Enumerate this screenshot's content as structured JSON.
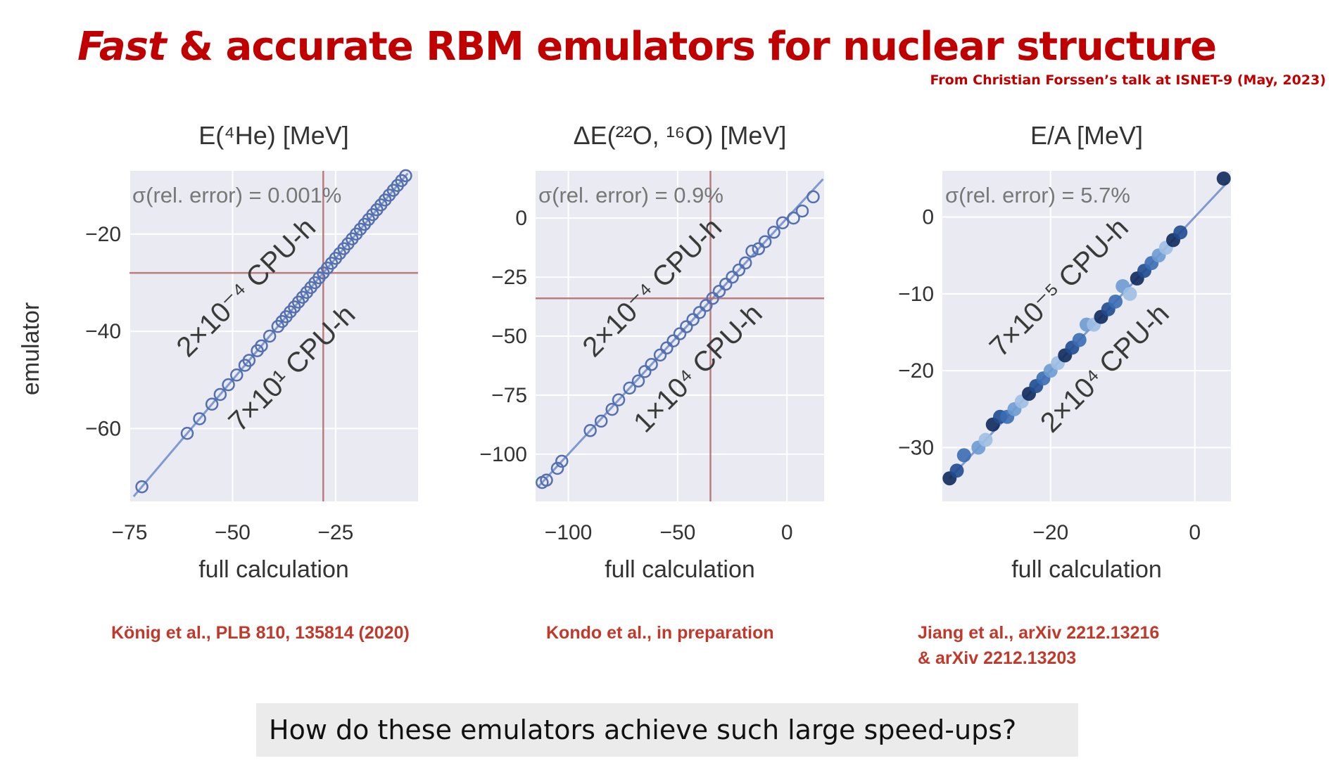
{
  "slide": {
    "title_italic": "Fast",
    "title_rest": " & accurate RBM emulators for nuclear structure",
    "source_note": "From Christian Forssen’s talk at ISNET-9 (May, 2023)",
    "question": "How do these emulators achieve such large speed-ups?",
    "colors": {
      "title": "#c00000",
      "citation": "#c0392b",
      "panel_bg": "#eaeaf2",
      "marker": "#5470b0",
      "crosshair": "#b26b6b"
    }
  },
  "chart_data": [
    {
      "type": "scatter",
      "title": "E(⁴He) [MeV]",
      "xlabel": "full calculation",
      "ylabel": "emulator",
      "xlim": [
        -75,
        -5
      ],
      "ylim": [
        -75,
        -7
      ],
      "xticks": [
        -75,
        -50,
        -25
      ],
      "yticks": [
        -20,
        -40,
        -60
      ],
      "xticklabels": [
        "−75",
        "−50",
        "−25"
      ],
      "yticklabels": [
        "−20",
        "−40",
        "−60"
      ],
      "grid": true,
      "annotation": "σ(rel. error) = 0.001%",
      "emulator_cost": "2×10⁻⁴ CPU-h",
      "full_cost": "7×10¹ CPU-h",
      "reference": {
        "x": -28,
        "y": -28
      },
      "series": [
        {
          "marker": "open",
          "x": [
            -72,
            -61,
            -58,
            -55,
            -53,
            -51,
            -49,
            -47,
            -46,
            -44,
            -43,
            -41,
            -39,
            -38,
            -37,
            -36,
            -35,
            -34,
            -33,
            -32,
            -31,
            -30,
            -29,
            -28,
            -27,
            -26,
            -25,
            -24,
            -23,
            -22,
            -21,
            -20,
            -19,
            -18,
            -17,
            -16,
            -15,
            -14,
            -13,
            -12,
            -11,
            -10,
            -9,
            -8
          ],
          "y": [
            -72,
            -61,
            -58,
            -55,
            -53,
            -51,
            -49,
            -47,
            -46,
            -44,
            -43,
            -41,
            -39,
            -38,
            -37,
            -36,
            -35,
            -34,
            -33,
            -32,
            -31,
            -30,
            -29,
            -28,
            -27,
            -26,
            -25,
            -24,
            -23,
            -22,
            -21,
            -20,
            -19,
            -18,
            -17,
            -16,
            -15,
            -14,
            -13,
            -12,
            -11,
            -10,
            -9,
            -8
          ]
        }
      ],
      "citation": [
        "König et al., PLB 810, 135814 (2020)"
      ]
    },
    {
      "type": "scatter",
      "title": "ΔE(²²O, ¹⁶O) [MeV]",
      "xlabel": "full calculation",
      "ylabel": "",
      "xlim": [
        -115,
        17
      ],
      "ylim": [
        -120,
        20
      ],
      "xticks": [
        -100,
        -50,
        0
      ],
      "yticks": [
        0,
        -25,
        -50,
        -75,
        -100
      ],
      "xticklabels": [
        "−100",
        "−50",
        "0"
      ],
      "yticklabels": [
        "0",
        "−25",
        "−50",
        "−75",
        "−100"
      ],
      "grid": true,
      "annotation": "σ(rel. error) = 0.9%",
      "emulator_cost": "2×10⁻⁴ CPU-h",
      "full_cost": "1×10⁴ CPU-h",
      "reference": {
        "x": -35,
        "y": -34
      },
      "series": [
        {
          "marker": "open",
          "x": [
            -112,
            -110,
            -105,
            -103,
            -90,
            -85,
            -80,
            -77,
            -72,
            -68,
            -65,
            -62,
            -58,
            -55,
            -52,
            -49,
            -46,
            -43,
            -40,
            -37,
            -34,
            -31,
            -28,
            -25,
            -22,
            -19,
            -16,
            -13,
            -10,
            -6,
            -2,
            3,
            7,
            12
          ],
          "y": [
            -112,
            -111,
            -106,
            -103,
            -90,
            -86,
            -81,
            -77,
            -72,
            -69,
            -65,
            -62,
            -58,
            -55,
            -52,
            -49,
            -46,
            -43,
            -40,
            -37,
            -34,
            -31,
            -28,
            -25,
            -22,
            -19,
            -14,
            -13,
            -10,
            -6,
            -2,
            0,
            3,
            9
          ]
        }
      ],
      "citation": [
        "Kondo et al., in preparation"
      ]
    },
    {
      "type": "scatter",
      "title": "E/A [MeV]",
      "xlabel": "full calculation",
      "ylabel": "",
      "xlim": [
        -35,
        5
      ],
      "ylim": [
        -37,
        6
      ],
      "xticks": [
        -20,
        0
      ],
      "yticks": [
        0,
        -10,
        -20,
        -30
      ],
      "xticklabels": [
        "−20",
        "0"
      ],
      "yticklabels": [
        "0",
        "−10",
        "−20",
        "−30"
      ],
      "grid": true,
      "annotation": "σ(rel. error) = 5.7%",
      "emulator_cost": "7×10⁻⁵ CPU-h",
      "full_cost": "2×10⁴ CPU-h",
      "series": [
        {
          "marker": "filled",
          "x": [
            -34,
            -33,
            -32,
            -30,
            -29,
            -28,
            -27,
            -26,
            -25,
            -24,
            -23,
            -22,
            -21,
            -20,
            -19,
            -18,
            -17,
            -16,
            -15,
            -14,
            -13,
            -12,
            -11,
            -10,
            -9,
            -8,
            -7,
            -6,
            -5,
            -4,
            -3,
            -2,
            4
          ],
          "y": [
            -34,
            -33,
            -31,
            -30,
            -29,
            -27,
            -26,
            -26,
            -25,
            -24,
            -23,
            -22,
            -21,
            -20,
            -19,
            -18,
            -17,
            -16,
            -14,
            -14,
            -13,
            -12,
            -11,
            -9,
            -10,
            -8,
            -7,
            -6,
            -5,
            -4,
            -3,
            -2,
            5
          ]
        }
      ],
      "citation": [
        "Jiang et al., arXiv 2212.13216",
        "& arXiv 2212.13203"
      ]
    }
  ]
}
